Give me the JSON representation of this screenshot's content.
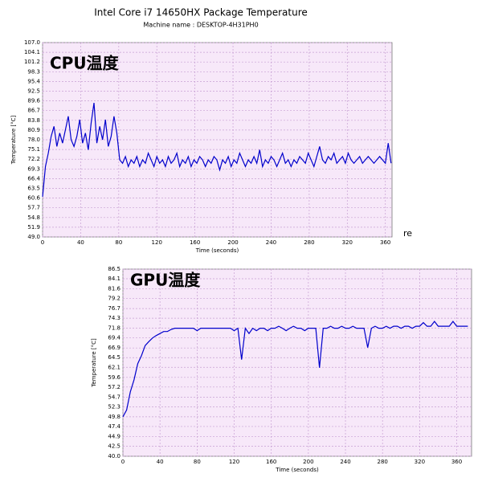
{
  "chart_data": [
    {
      "type": "line",
      "title": "Intel Core i7 14650HX Package Temperature",
      "subtitle": "Machine name : DESKTOP-4H31PH0",
      "title_color": "#2e9a2e",
      "annotation": "CPU温度",
      "annotation_color": "#e3202a",
      "x_label": "Time (seconds)",
      "y_label": "Temperature [°C]",
      "color": "#0000cc",
      "grid": true,
      "xlim": [
        0,
        367
      ],
      "ylim": [
        49,
        107
      ],
      "xticks": [
        0,
        40,
        80,
        120,
        160,
        200,
        240,
        280,
        320,
        360
      ],
      "yticks": [
        {
          "value": 49,
          "label": "49.0"
        },
        51.9,
        54.8,
        57.7,
        60.6,
        63.5,
        66.4,
        69.3,
        72.2,
        75.1,
        {
          "value": 78,
          "label": "78.0"
        },
        80.9,
        83.8,
        86.7,
        89.6,
        92.5,
        95.4,
        98.3,
        101.2,
        104.1,
        {
          "value": 107,
          "label": "107.0"
        }
      ],
      "x": [
        0,
        3,
        6,
        9,
        12,
        15,
        18,
        21,
        24,
        27,
        30,
        33,
        36,
        39,
        42,
        45,
        48,
        51,
        54,
        57,
        60,
        63,
        66,
        69,
        72,
        75,
        78,
        81,
        84,
        87,
        90,
        93,
        96,
        99,
        102,
        105,
        108,
        111,
        114,
        117,
        120,
        123,
        126,
        129,
        132,
        135,
        138,
        141,
        144,
        147,
        150,
        153,
        156,
        159,
        162,
        165,
        168,
        171,
        174,
        177,
        180,
        183,
        186,
        189,
        192,
        195,
        198,
        201,
        204,
        207,
        210,
        213,
        216,
        219,
        222,
        225,
        228,
        231,
        234,
        237,
        240,
        243,
        246,
        249,
        252,
        255,
        258,
        261,
        264,
        267,
        270,
        273,
        276,
        279,
        282,
        285,
        288,
        291,
        294,
        297,
        300,
        303,
        306,
        309,
        312,
        315,
        318,
        321,
        324,
        327,
        330,
        333,
        336,
        339,
        342,
        345,
        348,
        351,
        354,
        357,
        360,
        363,
        366
      ],
      "values": [
        61,
        70,
        74,
        79,
        82,
        76,
        80,
        77,
        81,
        85,
        78,
        76,
        79,
        84,
        77,
        80,
        75,
        83,
        89,
        77,
        82,
        78,
        84,
        76,
        79,
        85,
        80,
        72,
        71,
        73,
        70,
        72,
        71,
        73,
        70,
        72,
        71,
        74,
        72,
        70,
        73,
        71,
        72,
        70,
        73,
        71,
        72,
        74,
        70,
        72,
        71,
        73,
        70,
        72,
        71,
        73,
        72,
        70,
        72,
        71,
        73,
        72,
        69,
        72,
        71,
        73,
        70,
        72,
        71,
        74,
        72,
        70,
        72,
        71,
        73,
        71,
        75,
        70,
        72,
        71,
        73,
        72,
        70,
        72,
        74,
        71,
        72,
        70,
        72,
        71,
        73,
        72,
        71,
        74,
        72,
        70,
        73,
        76,
        72,
        71,
        73,
        72,
        74,
        71,
        72,
        73,
        71,
        74,
        72,
        71,
        72,
        73,
        71,
        72,
        73,
        72,
        71,
        72,
        73,
        72,
        71,
        77,
        71
      ]
    },
    {
      "type": "line",
      "annotation": "GPU温度",
      "annotation_color": "#cc1155",
      "x_label": "Time (seconds)",
      "y_label": "Temperature [°C]",
      "color": "#0000cc",
      "grid": true,
      "xlim": [
        0,
        376
      ],
      "ylim": [
        40,
        86.5
      ],
      "xticks": [
        0,
        40,
        80,
        120,
        160,
        200,
        240,
        280,
        320,
        360
      ],
      "yticks": [
        {
          "value": 40,
          "label": "40.0"
        },
        42.5,
        44.9,
        47.4,
        49.8,
        52.3,
        54.7,
        57.2,
        59.6,
        62.1,
        64.5,
        66.9,
        69.4,
        71.8,
        74.3,
        76.7,
        79.2,
        81.6,
        84.1,
        86.5
      ],
      "x": [
        0,
        4,
        8,
        12,
        16,
        20,
        24,
        28,
        32,
        36,
        40,
        44,
        48,
        52,
        56,
        60,
        64,
        68,
        72,
        76,
        80,
        84,
        88,
        92,
        96,
        100,
        104,
        108,
        112,
        116,
        120,
        124,
        128,
        132,
        136,
        140,
        144,
        148,
        152,
        156,
        160,
        164,
        168,
        172,
        176,
        180,
        184,
        188,
        192,
        196,
        200,
        204,
        208,
        212,
        216,
        220,
        224,
        228,
        232,
        236,
        240,
        244,
        248,
        252,
        256,
        260,
        264,
        268,
        272,
        276,
        280,
        284,
        288,
        292,
        296,
        300,
        304,
        308,
        312,
        316,
        320,
        324,
        328,
        332,
        336,
        340,
        344,
        348,
        352,
        356,
        360,
        364,
        368,
        372
      ],
      "values": [
        49.8,
        51.5,
        56,
        59,
        63,
        65,
        67.5,
        68.5,
        69.4,
        70,
        70.5,
        71,
        71,
        71.5,
        71.8,
        71.8,
        71.8,
        71.8,
        71.8,
        71.8,
        71.2,
        71.8,
        71.8,
        71.8,
        71.8,
        71.8,
        71.8,
        71.8,
        71.8,
        71.8,
        71.2,
        71.8,
        64,
        71.8,
        70.5,
        71.8,
        71.2,
        71.8,
        71.8,
        71.2,
        71.8,
        71.8,
        72.3,
        71.8,
        71.2,
        71.8,
        72.3,
        71.8,
        71.8,
        71.2,
        71.8,
        71.8,
        71.8,
        62,
        71.8,
        71.8,
        72.3,
        71.8,
        71.8,
        72.3,
        71.8,
        71.8,
        72.3,
        71.8,
        71.8,
        71.8,
        67,
        71.8,
        72.3,
        71.8,
        71.8,
        72.3,
        71.8,
        72.3,
        72.3,
        71.8,
        72.3,
        72.3,
        71.8,
        72.3,
        72.3,
        73.2,
        72.3,
        72.3,
        73.5,
        72.3,
        72.3,
        72.3,
        72.3,
        73.5,
        72.3,
        72.3,
        72.3,
        72.3
      ]
    }
  ],
  "background_fragment": "re"
}
